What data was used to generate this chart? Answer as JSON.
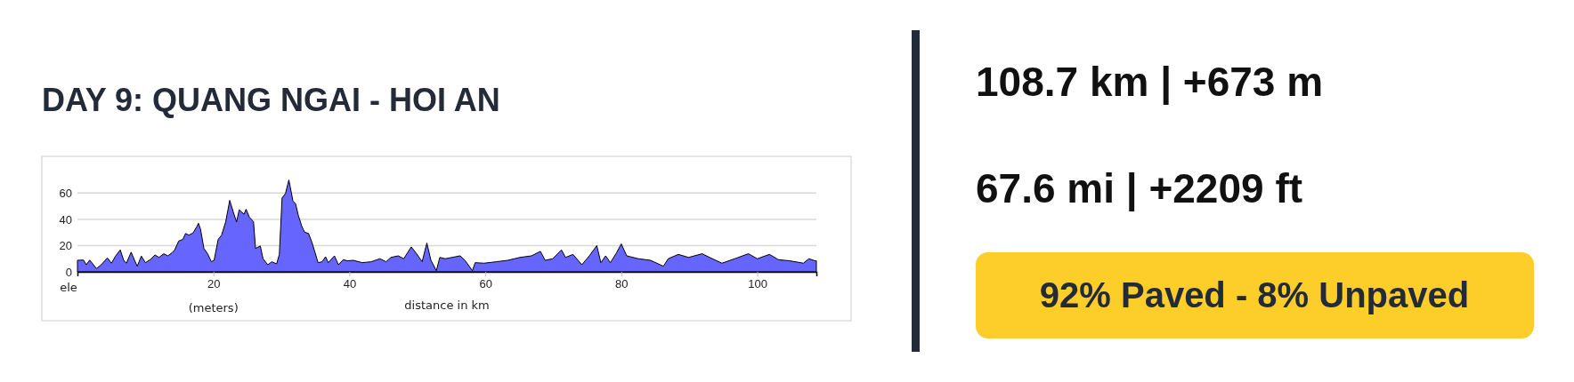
{
  "chart_data": {
    "type": "area",
    "title": "DAY 9: QUANG NGAI - HOI AN",
    "xlabel": "distance in km",
    "annotations": [
      "ele",
      "(meters)",
      "108.7 km | +673 m",
      "67.6 mi | +2209 ft",
      "92% Paved - 8% Unpaved"
    ],
    "x": [
      0,
      0.9,
      1.3,
      1.8,
      2.8,
      3.5,
      4.4,
      5.0,
      5.6,
      6.3,
      6.8,
      7.2,
      7.9,
      8.4,
      8.8,
      9.4,
      10,
      10.7,
      11.4,
      12,
      12.7,
      13.3,
      13.9,
      14.3,
      14.9,
      15.5,
      15.9,
      16.4,
      17,
      17.6,
      17.8,
      18.1,
      18.6,
      19.2,
      19.7,
      20.1,
      20.7,
      21.2,
      21.8,
      22.4,
      22.9,
      23.4,
      23.8,
      24.5,
      24.8,
      25.3,
      25.9,
      26.2,
      26.9,
      27.3,
      28,
      28.6,
      29.3,
      29.7,
      30.1,
      30.6,
      31.1,
      31.7,
      32.1,
      32.5,
      33,
      33.4,
      34,
      34.5,
      34.9,
      35.4,
      36,
      36.5,
      36.9,
      37.8,
      38.4,
      39.1,
      39.7,
      40.6,
      41.9,
      43.2,
      44.5,
      45.4,
      46.1,
      47.2,
      48,
      49.1,
      49.8,
      50.7,
      51.4,
      52,
      52.8,
      53.3,
      54.1,
      56.3,
      57,
      58.1,
      58.5,
      59.8,
      61.6,
      63.3,
      65.1,
      66.8,
      68.1,
      68.8,
      69.9,
      71.2,
      71.8,
      72.9,
      74.2,
      75.3,
      76.4,
      77,
      77.7,
      78.4,
      79.3,
      80,
      80.8,
      82.5,
      84.3,
      86.2,
      86.9,
      88.4,
      89.9,
      91.9,
      93,
      94.8,
      96.7,
      98.7,
      100,
      101.8,
      103.1,
      104.8,
      106.8,
      107.6,
      108.5,
      108.7
    ],
    "series": [
      {
        "color": "#6666ff",
        "values": [
          8.8,
          9,
          5.4,
          9,
          2.5,
          5.4,
          10.6,
          6.6,
          12,
          16.7,
          8.8,
          6.6,
          15,
          8.8,
          4.3,
          12,
          7,
          9.3,
          12.9,
          11,
          13.8,
          12.2,
          14.5,
          16.7,
          23.5,
          24.7,
          29.2,
          28,
          29.6,
          34.8,
          37,
          32.6,
          17.9,
          13.3,
          7.7,
          8.8,
          24.7,
          28,
          38,
          54.5,
          46,
          38,
          47.3,
          43.9,
          47.7,
          41.6,
          38.2,
          17.9,
          19.7,
          10,
          5.4,
          7.7,
          6.1,
          13.3,
          56.3,
          59.7,
          70,
          54,
          51.8,
          42.8,
          34.8,
          30.3,
          29.2,
          22.4,
          15.6,
          7,
          7.7,
          11.5,
          7,
          12.2,
          5.4,
          9.3,
          8.4,
          8.8,
          7,
          7.7,
          10,
          7.7,
          11,
          12.2,
          10,
          19,
          14.5,
          7.7,
          22,
          8.8,
          0.9,
          11,
          10,
          12.2,
          8.8,
          0.9,
          7,
          6.6,
          7.7,
          8.8,
          11,
          12.2,
          15.6,
          8.8,
          10,
          16.7,
          11,
          13.3,
          5.4,
          12.2,
          20,
          7,
          12.2,
          7,
          14.5,
          21.3,
          12.2,
          10,
          8.8,
          4.3,
          10,
          13.3,
          11,
          13.8,
          11,
          6.6,
          10,
          13.8,
          10,
          13.3,
          9.3,
          8.4,
          6.6,
          10,
          8.4,
          8.4
        ]
      }
    ],
    "xlim": [
      0,
      108.7
    ],
    "ylim": [
      0,
      88
    ],
    "xticks": [
      20,
      40,
      60,
      80,
      100
    ],
    "yticks": [
      0,
      20,
      40,
      60
    ],
    "grid": "y"
  }
}
